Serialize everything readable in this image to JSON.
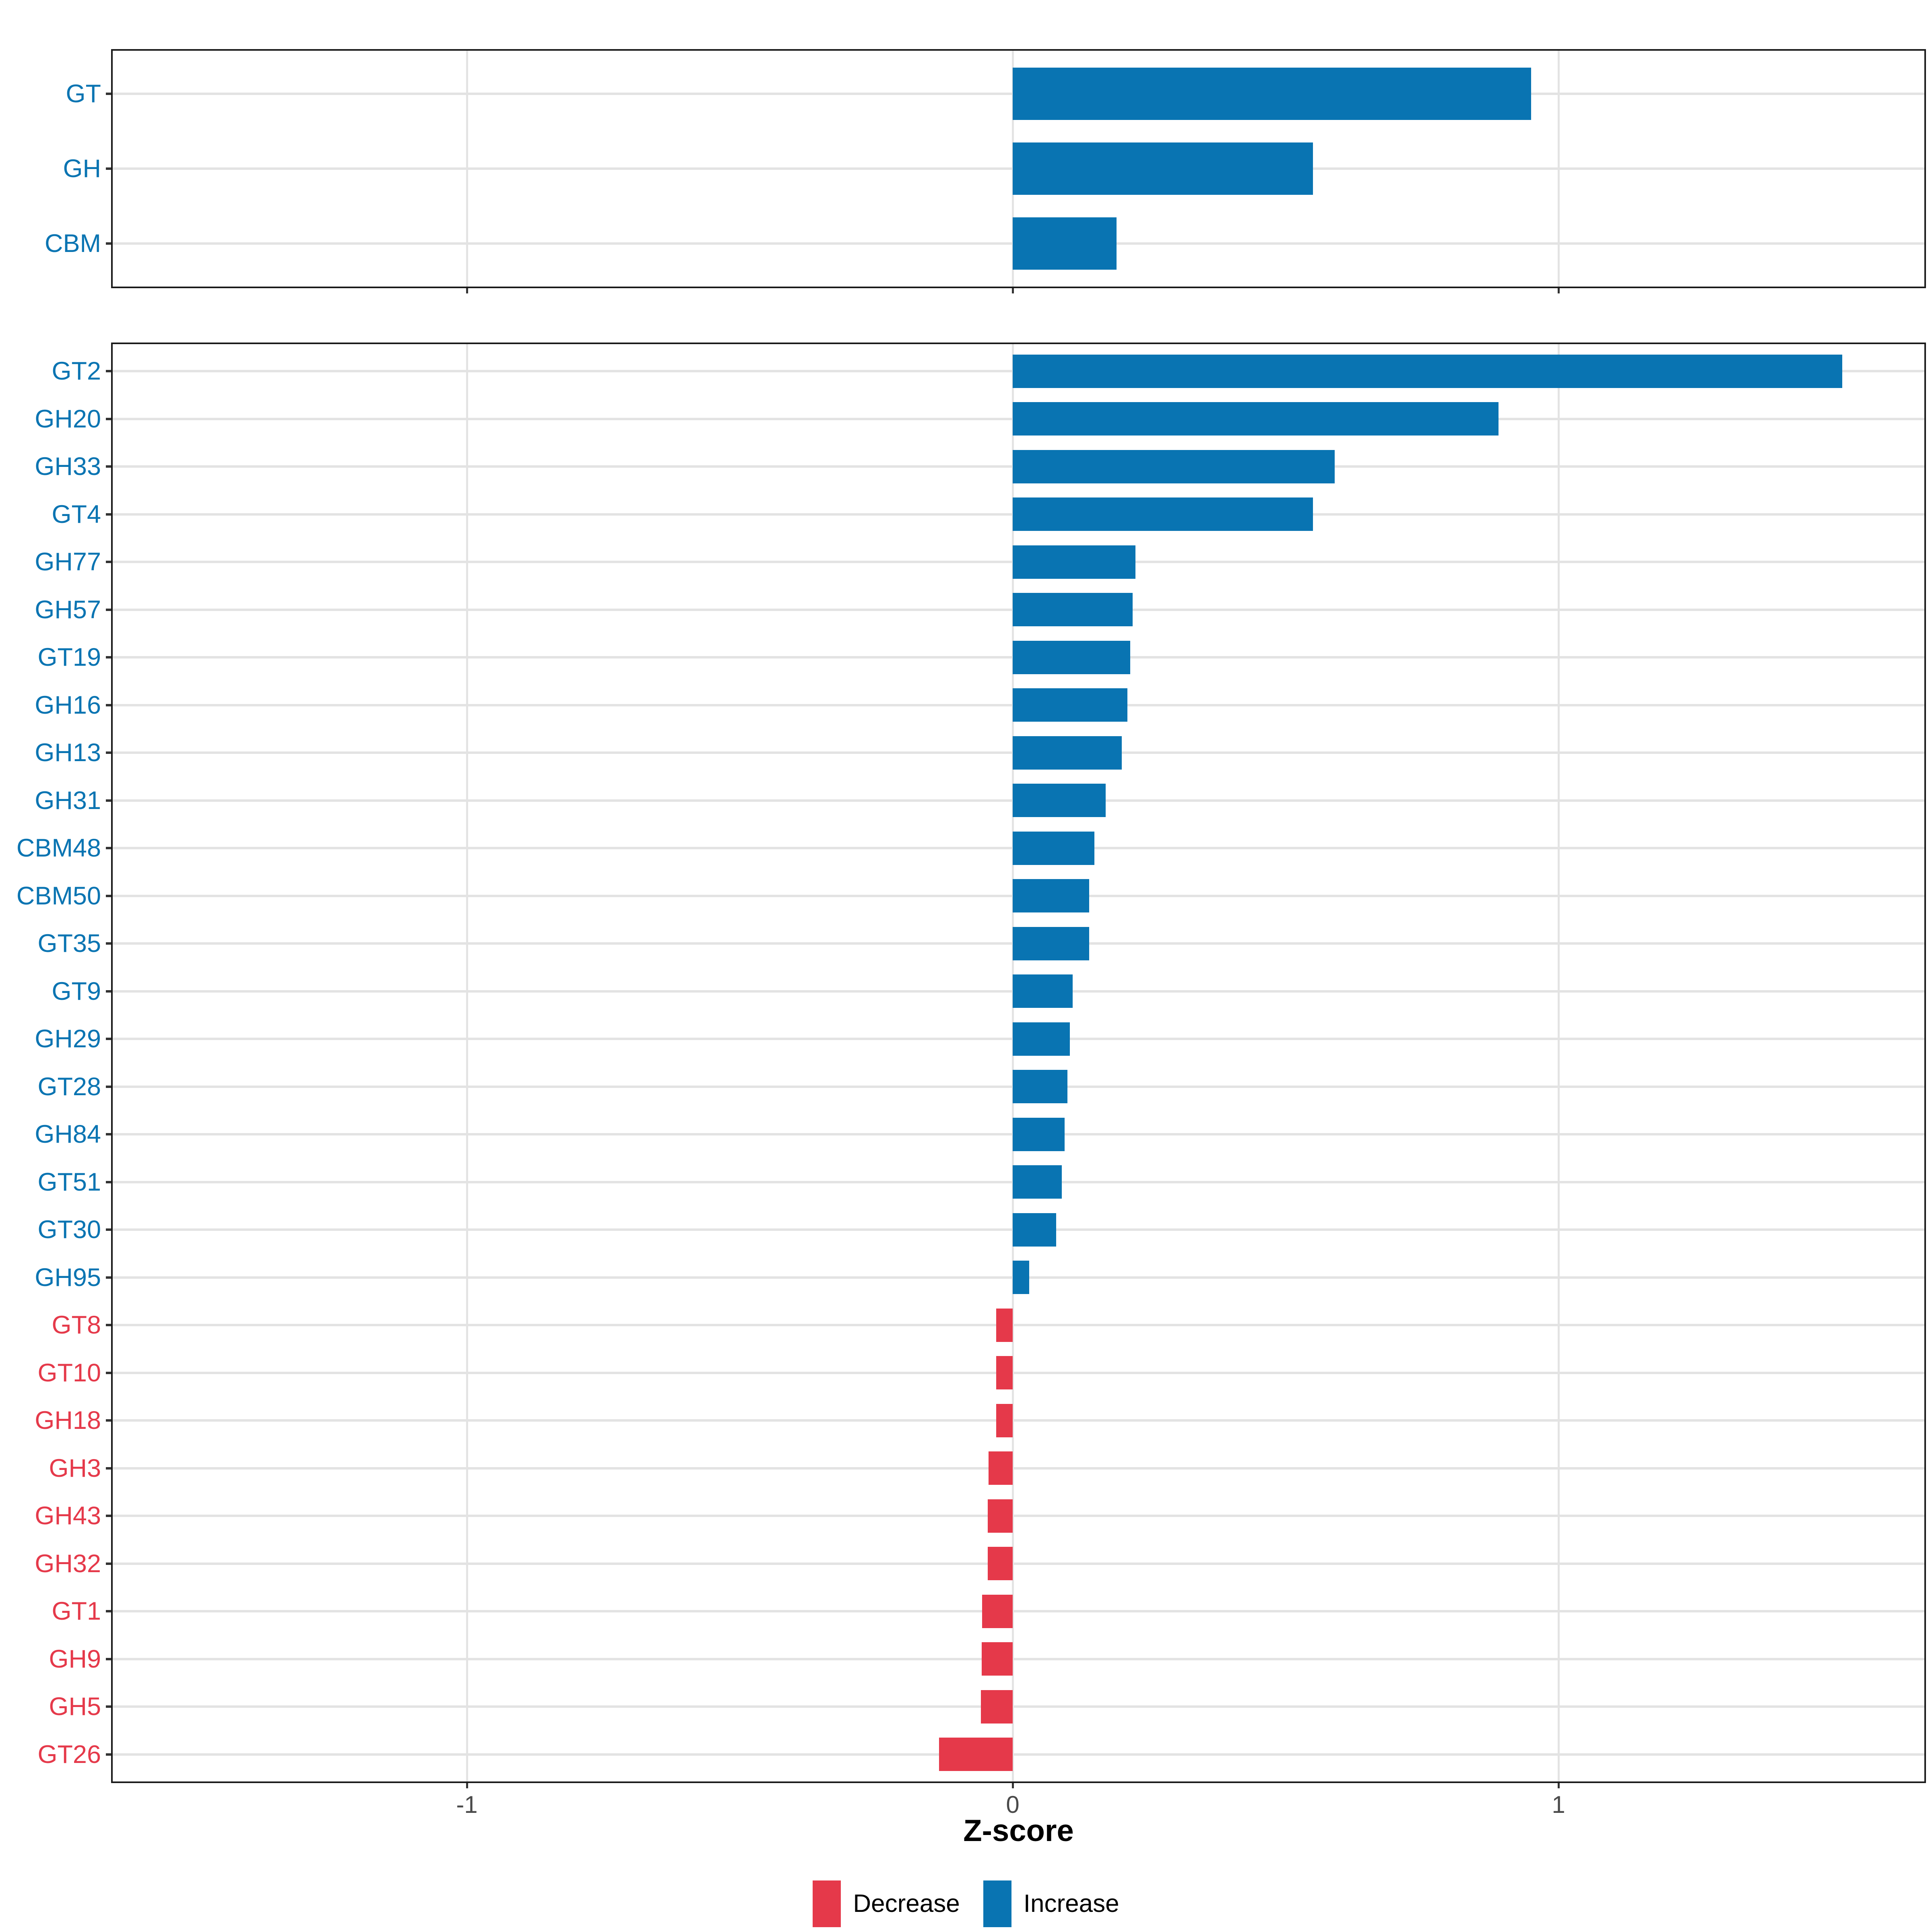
{
  "figure": {
    "axis": {
      "title": "Z-score",
      "tick_values": [
        -1,
        0,
        1
      ],
      "tick_labels": [
        "-1",
        "0",
        "1"
      ],
      "xmin": -1.652,
      "xmax": 1.673
    },
    "colors": {
      "increase": "#0974b2",
      "decrease": "#e5394a",
      "grid": "#e3e3e3",
      "panel_border": "#1a1a1a",
      "tick": "#333333",
      "tick_text": "#4a4a4a",
      "background": "#ffffff"
    },
    "legend": {
      "items": [
        {
          "label": "Decrease",
          "color_key": "decrease"
        },
        {
          "label": "Increase",
          "color_key": "increase"
        }
      ]
    }
  },
  "chart_data": [
    {
      "type": "bar",
      "orientation": "horizontal",
      "panel": "top",
      "title": "",
      "xlabel": "Z-score",
      "ylabel": "",
      "xlim": [
        -1.652,
        1.673
      ],
      "xticks": [
        -1,
        0,
        1
      ],
      "grid": true,
      "legend_position": "bottom",
      "categories": [
        "GT",
        "GH",
        "CBM"
      ],
      "values": [
        0.95,
        0.55,
        0.19
      ],
      "direction": [
        "Increase",
        "Increase",
        "Increase"
      ]
    },
    {
      "type": "bar",
      "orientation": "horizontal",
      "panel": "bottom",
      "title": "",
      "xlabel": "Z-score",
      "ylabel": "",
      "xlim": [
        -1.652,
        1.673
      ],
      "xticks": [
        -1,
        0,
        1
      ],
      "grid": true,
      "legend_position": "bottom",
      "categories": [
        "GT2",
        "GH20",
        "GH33",
        "GT4",
        "GH77",
        "GH57",
        "GT19",
        "GH16",
        "GH13",
        "GH31",
        "CBM48",
        "CBM50",
        "GT35",
        "GT9",
        "GH29",
        "GT28",
        "GH84",
        "GT51",
        "GT30",
        "GH95",
        "GT8",
        "GT10",
        "GH18",
        "GH3",
        "GH43",
        "GH32",
        "GT1",
        "GH9",
        "GH5",
        "GT26"
      ],
      "values": [
        1.52,
        0.89,
        0.59,
        0.55,
        0.225,
        0.22,
        0.215,
        0.21,
        0.2,
        0.17,
        0.15,
        0.14,
        0.14,
        0.11,
        0.105,
        0.1,
        0.095,
        0.09,
        0.08,
        0.03,
        -0.03,
        -0.03,
        -0.03,
        -0.044,
        -0.046,
        -0.046,
        -0.056,
        -0.057,
        -0.058,
        -0.135
      ],
      "direction": [
        "Increase",
        "Increase",
        "Increase",
        "Increase",
        "Increase",
        "Increase",
        "Increase",
        "Increase",
        "Increase",
        "Increase",
        "Increase",
        "Increase",
        "Increase",
        "Increase",
        "Increase",
        "Increase",
        "Increase",
        "Increase",
        "Increase",
        "Increase",
        "Decrease",
        "Decrease",
        "Decrease",
        "Decrease",
        "Decrease",
        "Decrease",
        "Decrease",
        "Decrease",
        "Decrease",
        "Decrease"
      ]
    }
  ]
}
